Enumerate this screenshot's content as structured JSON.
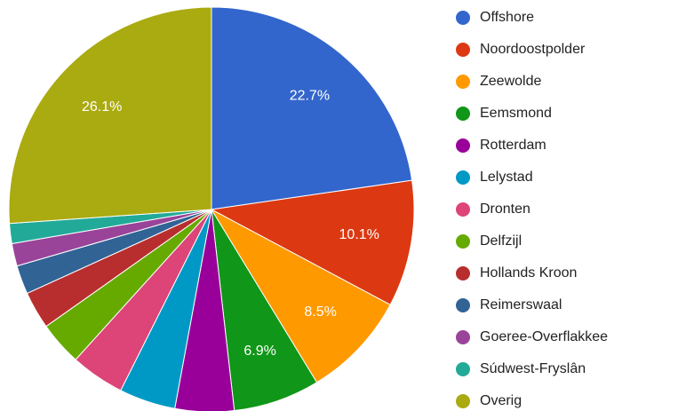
{
  "chart_data": {
    "type": "pie",
    "categories": [
      "Offshore",
      "Noordoostpolder",
      "Zeewolde",
      "Eemsmond",
      "Rotterdam",
      "Lelystad",
      "Dronten",
      "Delfzijl",
      "Hollands Kroon",
      "Reimerswaal",
      "Goeree-Overflakkee",
      "Súdwest-Fryslân",
      "Overig"
    ],
    "values": [
      22.7,
      10.1,
      8.5,
      6.9,
      4.7,
      4.5,
      4.3,
      3.5,
      3.0,
      2.3,
      1.8,
      1.6,
      26.1
    ],
    "value_labels": [
      "22.7%",
      "10.1%",
      "8.5%",
      "6.9%",
      null,
      null,
      null,
      null,
      null,
      null,
      null,
      null,
      "26.1%"
    ],
    "colors": [
      "#3366cc",
      "#dc3912",
      "#ff9900",
      "#109618",
      "#990099",
      "#0099c6",
      "#dd4477",
      "#66aa00",
      "#b82e2e",
      "#316395",
      "#994499",
      "#22aa99",
      "#aaaa11"
    ],
    "legend": "right"
  }
}
